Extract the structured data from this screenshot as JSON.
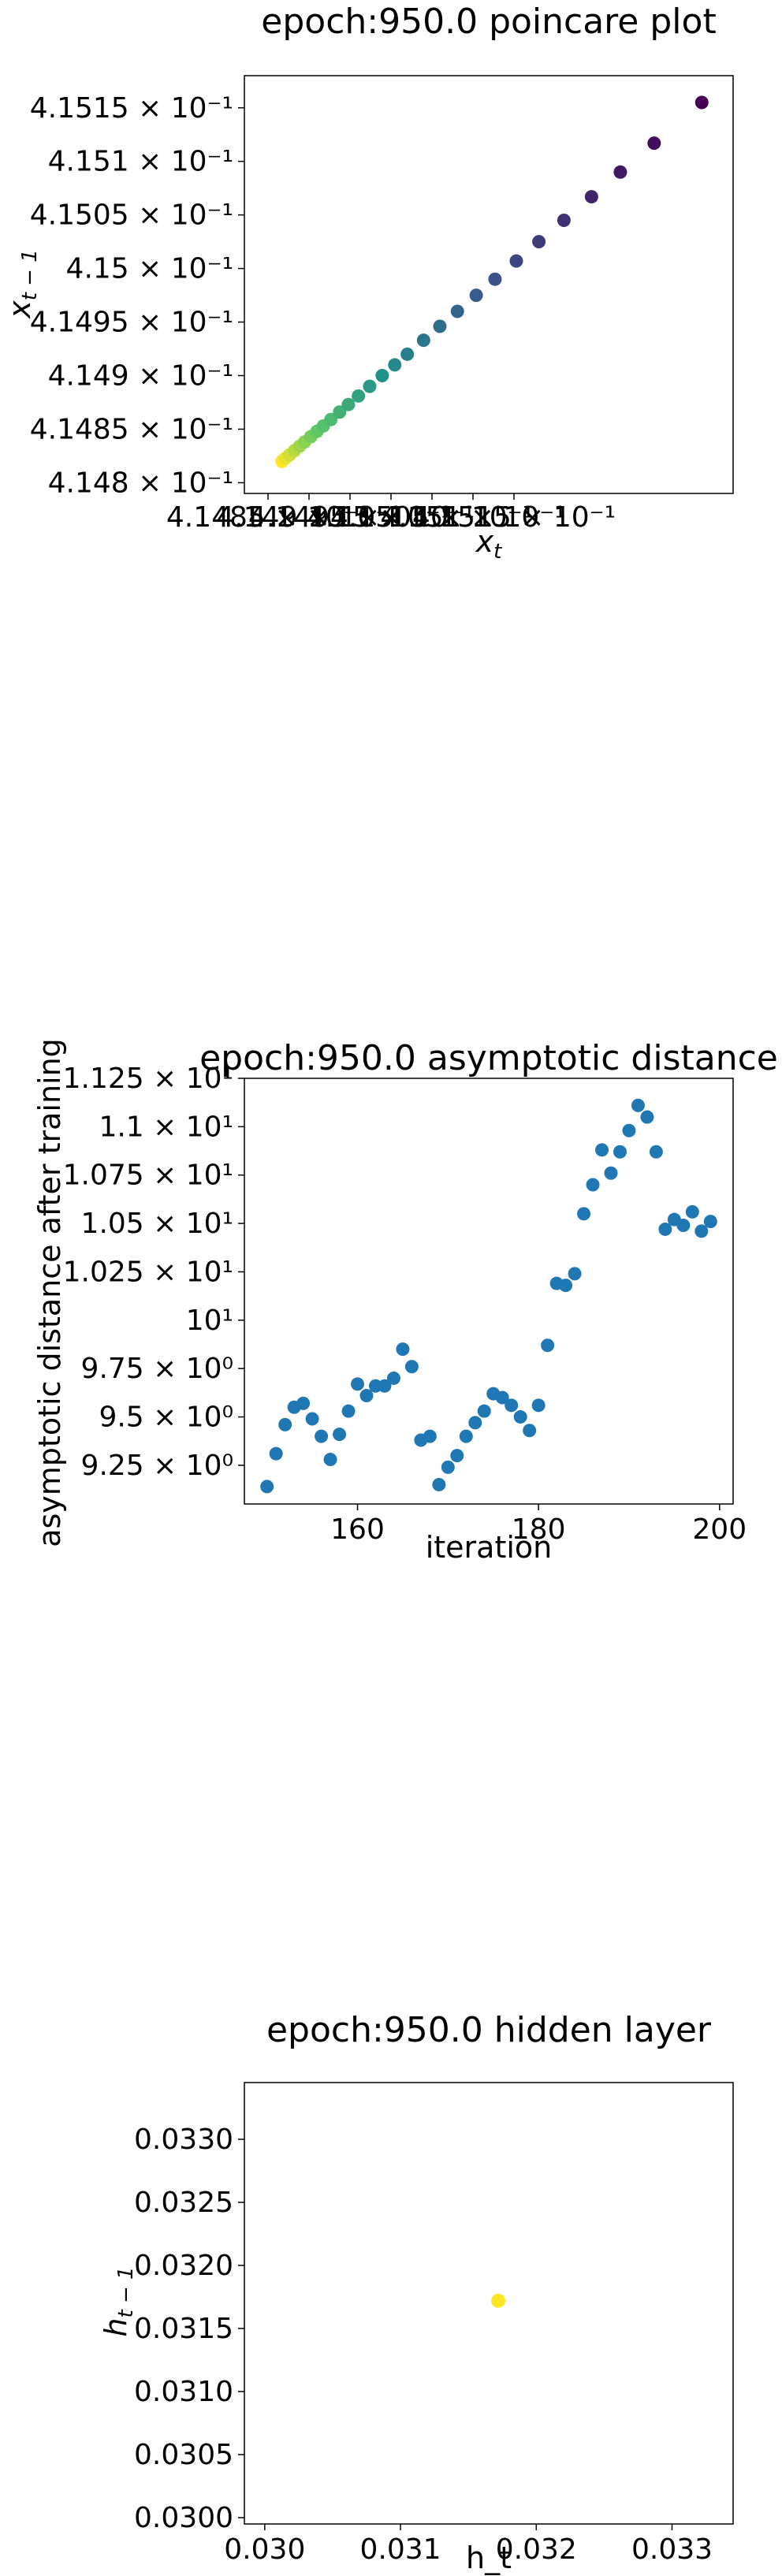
{
  "chart_data": [
    {
      "type": "scatter",
      "title": "epoch:950.0 poincare plot",
      "xlabel": "x_t",
      "ylabel": "x_{t-1}",
      "xlim": [
        0.41479,
        0.41518
      ],
      "ylim": [
        0.41479,
        0.41518
      ],
      "x_tick_labels": [
        "4.1485 × 10⁻¹",
        "4.149 × 10⁻¹",
        "4.1495 × 10⁻¹",
        "4.15 × 10⁻¹",
        "4.1505 × 10⁻¹",
        "4.151 × 10⁻¹",
        "4.1515 × 10⁻¹"
      ],
      "y_ticks": [
        0.4148,
        0.41485,
        0.4149,
        0.41495,
        0.415,
        0.41505,
        0.4151,
        0.41515
      ],
      "y_tick_labels": [
        "4.148 × 10⁻¹",
        "4.1485 × 10⁻¹",
        "4.149 × 10⁻¹",
        "4.1495 × 10⁻¹",
        "4.15 × 10⁻¹",
        "4.1505 × 10⁻¹",
        "4.151 × 10⁻¹",
        "4.1515 × 10⁻¹"
      ],
      "colormap": "viridis",
      "points": [
        [
          0.41482,
          0.41482
        ],
        [
          0.414823,
          0.414823
        ],
        [
          0.414826,
          0.414826
        ],
        [
          0.41483,
          0.41483
        ],
        [
          0.414834,
          0.414834
        ],
        [
          0.414838,
          0.414838
        ],
        [
          0.414843,
          0.414843
        ],
        [
          0.414848,
          0.414848
        ],
        [
          0.414853,
          0.414853
        ],
        [
          0.414859,
          0.414859
        ],
        [
          0.414866,
          0.414866
        ],
        [
          0.414873,
          0.414873
        ],
        [
          0.414881,
          0.414881
        ],
        [
          0.41489,
          0.41489
        ],
        [
          0.4149,
          0.4149
        ],
        [
          0.41491,
          0.41491
        ],
        [
          0.41492,
          0.41492
        ],
        [
          0.414933,
          0.414933
        ],
        [
          0.414946,
          0.414946
        ],
        [
          0.41496,
          0.41496
        ],
        [
          0.414975,
          0.414975
        ],
        [
          0.41499,
          0.41499
        ],
        [
          0.415007,
          0.415007
        ],
        [
          0.415025,
          0.415025
        ],
        [
          0.415045,
          0.415045
        ],
        [
          0.415067,
          0.415067
        ],
        [
          0.41509,
          0.41509
        ],
        [
          0.415117,
          0.415117
        ],
        [
          0.415155,
          0.415155
        ]
      ]
    },
    {
      "type": "scatter",
      "title": "epoch:950.0 asymptotic distance",
      "xlabel": "iteration",
      "ylabel": "asymptotic distance after training",
      "xlim": [
        147.5,
        201.5
      ],
      "ylim": [
        9.05,
        11.25
      ],
      "x_ticks": [
        160,
        180,
        200
      ],
      "x_tick_labels": [
        "160",
        "180",
        "200"
      ],
      "y_ticks": [
        9.25,
        9.5,
        9.75,
        10,
        10.25,
        10.5,
        10.75,
        11,
        11.25
      ],
      "y_tick_labels": [
        "9.25 × 10⁰",
        "9.5 × 10⁰",
        "9.75 × 10⁰",
        "10¹",
        "1.025 × 10¹",
        "1.05 × 10¹",
        "1.075 × 10¹",
        "1.1 × 10¹",
        "1.125 × 10¹"
      ],
      "color": "#1f77b4",
      "x": [
        150,
        151,
        152,
        153,
        154,
        155,
        156,
        157,
        158,
        159,
        160,
        161,
        162,
        163,
        164,
        165,
        166,
        167,
        168,
        169,
        170,
        171,
        172,
        173,
        174,
        175,
        176,
        177,
        178,
        179,
        180,
        181,
        182,
        183,
        184,
        185,
        186,
        187,
        188,
        189,
        190,
        191,
        192,
        193,
        194,
        195,
        196,
        197,
        198,
        199
      ],
      "y": [
        9.14,
        9.31,
        9.46,
        9.55,
        9.57,
        9.49,
        9.4,
        9.28,
        9.41,
        9.53,
        9.67,
        9.61,
        9.66,
        9.66,
        9.7,
        9.85,
        9.76,
        9.38,
        9.4,
        9.15,
        9.24,
        9.3,
        9.4,
        9.47,
        9.53,
        9.62,
        9.6,
        9.56,
        9.5,
        9.43,
        9.56,
        9.87,
        10.19,
        10.18,
        10.24,
        10.55,
        10.7,
        10.88,
        10.76,
        10.87,
        10.98,
        11.11,
        11.05,
        10.87,
        10.47,
        10.52,
        10.49,
        10.56,
        10.46,
        10.51
      ]
    },
    {
      "type": "scatter",
      "title": "epoch:950.0 hidden layer",
      "xlabel": "h_t",
      "ylabel": "h_{t-1}",
      "xlim": [
        0.02985,
        0.03345
      ],
      "ylim": [
        0.02995,
        0.03345
      ],
      "x_ticks": [
        0.03,
        0.031,
        0.032,
        0.033
      ],
      "x_tick_labels": [
        "0.030",
        "0.031",
        "0.032",
        "0.033"
      ],
      "y_ticks": [
        0.03,
        0.0305,
        0.031,
        0.0315,
        0.032,
        0.0325,
        0.033
      ],
      "y_tick_labels": [
        "0.0300",
        "0.0305",
        "0.0310",
        "0.0315",
        "0.0320",
        "0.0325",
        "0.0330"
      ],
      "color": "#fde725",
      "points": [
        [
          0.03172,
          0.03172
        ]
      ]
    }
  ]
}
